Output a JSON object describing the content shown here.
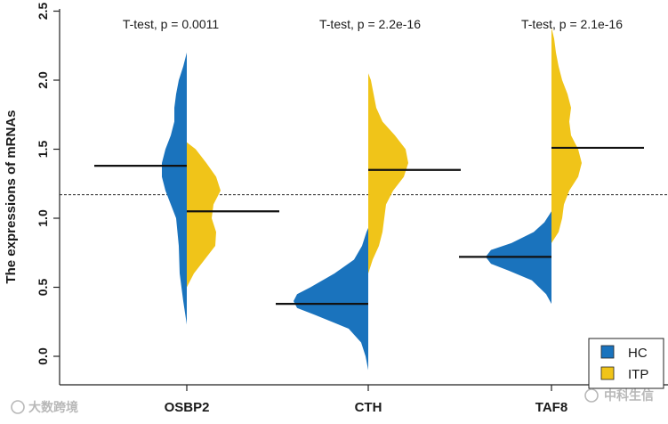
{
  "chart_data": {
    "type": "violin",
    "title": "",
    "xlabel": "",
    "ylabel": "The expressions of mRNAs",
    "ylim": [
      -0.1,
      2.55
    ],
    "yticks": [
      "0.0",
      "0.5",
      "1.0",
      "1.5",
      "2.0",
      "2.5"
    ],
    "reference_line": 1.17,
    "categories": [
      "OSBP2",
      "CTH",
      "TAF8"
    ],
    "tests": [
      "T-test, p = 0.0011",
      "T-test, p = 2.2e-16",
      "T-test, p = 2.1e-16"
    ],
    "series": [
      {
        "name": "HC",
        "color": "#1a73bd",
        "side": "left",
        "medians": [
          1.38,
          0.38,
          0.72
        ],
        "ranges": [
          [
            0.23,
            2.2
          ],
          [
            -0.1,
            0.93
          ],
          [
            0.38,
            1.05
          ]
        ],
        "density_profiles": [
          [
            [
              0.23,
              0
            ],
            [
              0.4,
              4
            ],
            [
              0.6,
              8
            ],
            [
              0.8,
              9
            ],
            [
              1.0,
              12
            ],
            [
              1.1,
              18
            ],
            [
              1.2,
              24
            ],
            [
              1.3,
              28
            ],
            [
              1.4,
              28
            ],
            [
              1.5,
              24
            ],
            [
              1.6,
              18
            ],
            [
              1.7,
              14
            ],
            [
              1.8,
              14
            ],
            [
              1.9,
              12
            ],
            [
              2.0,
              9
            ],
            [
              2.1,
              4
            ],
            [
              2.2,
              0
            ]
          ],
          [
            [
              -0.1,
              0
            ],
            [
              0.0,
              3
            ],
            [
              0.1,
              8
            ],
            [
              0.2,
              22
            ],
            [
              0.3,
              60
            ],
            [
              0.35,
              80
            ],
            [
              0.4,
              84
            ],
            [
              0.45,
              80
            ],
            [
              0.5,
              65
            ],
            [
              0.6,
              38
            ],
            [
              0.7,
              16
            ],
            [
              0.8,
              7
            ],
            [
              0.9,
              2
            ],
            [
              0.93,
              0
            ]
          ],
          [
            [
              0.38,
              0
            ],
            [
              0.45,
              6
            ],
            [
              0.55,
              22
            ],
            [
              0.62,
              48
            ],
            [
              0.67,
              68
            ],
            [
              0.72,
              74
            ],
            [
              0.77,
              68
            ],
            [
              0.82,
              45
            ],
            [
              0.9,
              20
            ],
            [
              0.97,
              8
            ],
            [
              1.05,
              0
            ]
          ]
        ]
      },
      {
        "name": "ITP",
        "color": "#f0c419",
        "side": "right",
        "medians": [
          1.05,
          1.35,
          1.51
        ],
        "ranges": [
          [
            0.5,
            1.55
          ],
          [
            0.6,
            2.05
          ],
          [
            0.82,
            2.38
          ]
        ],
        "density_profiles": [
          [
            [
              0.5,
              0
            ],
            [
              0.6,
              8
            ],
            [
              0.7,
              20
            ],
            [
              0.8,
              32
            ],
            [
              0.9,
              33
            ],
            [
              1.0,
              28
            ],
            [
              1.1,
              30
            ],
            [
              1.2,
              38
            ],
            [
              1.3,
              33
            ],
            [
              1.4,
              22
            ],
            [
              1.5,
              10
            ],
            [
              1.55,
              0
            ]
          ],
          [
            [
              0.6,
              0
            ],
            [
              0.7,
              5
            ],
            [
              0.8,
              12
            ],
            [
              0.9,
              16
            ],
            [
              1.0,
              18
            ],
            [
              1.1,
              20
            ],
            [
              1.2,
              28
            ],
            [
              1.3,
              40
            ],
            [
              1.4,
              45
            ],
            [
              1.5,
              42
            ],
            [
              1.6,
              30
            ],
            [
              1.7,
              16
            ],
            [
              1.8,
              9
            ],
            [
              1.9,
              6
            ],
            [
              2.0,
              3
            ],
            [
              2.05,
              0
            ]
          ],
          [
            [
              0.82,
              0
            ],
            [
              0.9,
              8
            ],
            [
              1.0,
              12
            ],
            [
              1.1,
              14
            ],
            [
              1.2,
              20
            ],
            [
              1.3,
              30
            ],
            [
              1.4,
              34
            ],
            [
              1.5,
              30
            ],
            [
              1.6,
              22
            ],
            [
              1.7,
              20
            ],
            [
              1.8,
              22
            ],
            [
              1.9,
              18
            ],
            [
              2.0,
              12
            ],
            [
              2.1,
              8
            ],
            [
              2.2,
              5
            ],
            [
              2.3,
              3
            ],
            [
              2.38,
              0
            ]
          ]
        ]
      }
    ],
    "legend": {
      "position": "bottom-right",
      "entries": [
        {
          "label": "HC",
          "color": "#1a73bd"
        },
        {
          "label": "ITP",
          "color": "#f0c419"
        }
      ]
    }
  },
  "watermarks": {
    "left": "大数跨境",
    "right": "中科生信"
  }
}
